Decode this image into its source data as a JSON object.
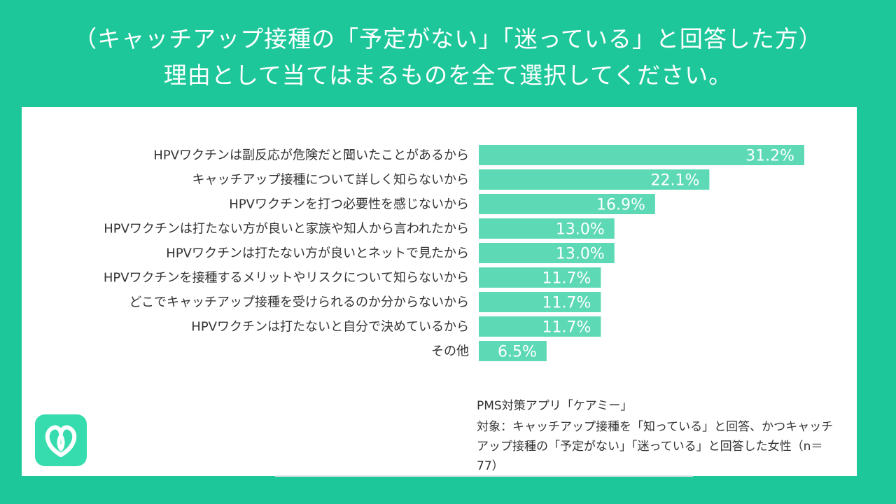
{
  "title": {
    "line1": "（キャッチアップ接種の「予定がない」「迷っている」と回答した方）",
    "line2": "理由として当てはまるものを全て選択してください。"
  },
  "footer": {
    "source": "PMS対策アプリ「ケアミー」",
    "target": "対象：キャッチアップ接種を「知っている」と回答、かつキャッチアップ接種の「予定がない」「迷っている」と回答した女性（n＝77）"
  },
  "logo": {
    "icon": "heart-icon"
  },
  "colors": {
    "background": "#1ec79a",
    "bar": "#5dd9b6",
    "label_text": "#ffffff"
  },
  "chart_data": {
    "type": "bar",
    "orientation": "horizontal",
    "categories": [
      "HPVワクチンは副反応が危険だと聞いたことがあるから",
      "キャッチアップ接種について詳しく知らないから",
      "HPVワクチンを打つ必要性を感じないから",
      "HPVワクチンは打たない方が良いと家族や知人から言われたから",
      "HPVワクチンは打たない方が良いとネットで見たから",
      "HPVワクチンを接種するメリットやリスクについて知らないから",
      "どこでキャッチアップ接種を受けられるのか分からないから",
      "HPVワクチンは打たないと自分で決めているから",
      "その他"
    ],
    "values": [
      31.2,
      22.1,
      16.9,
      13.0,
      13.0,
      11.7,
      11.7,
      11.7,
      6.5
    ],
    "data_labels": [
      "31.2%",
      "22.1%",
      "16.9%",
      "13.0%",
      "13.0%",
      "11.7%",
      "11.7%",
      "11.7%",
      "6.5%"
    ],
    "xlim": [
      0,
      31.2
    ],
    "grid": false
  }
}
